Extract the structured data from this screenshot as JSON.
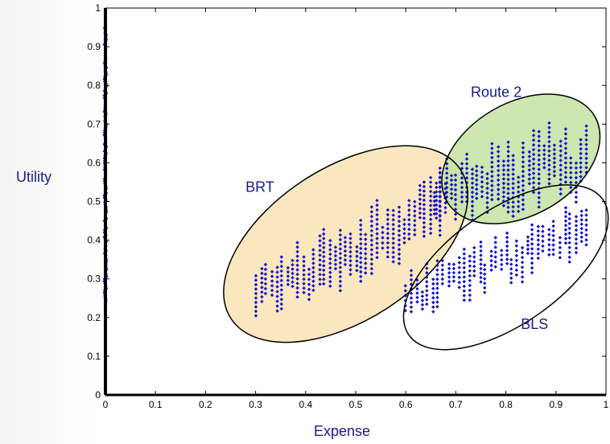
{
  "chart_data": {
    "type": "scatter",
    "xlabel": "Expense",
    "ylabel": "Utility",
    "xlim": [
      0,
      1
    ],
    "ylim": [
      0,
      1
    ],
    "xticks": [
      "0",
      "0.1",
      "0.2",
      "0.3",
      "0.4",
      "0.5",
      "0.6",
      "0.7",
      "0.8",
      "0.9",
      "1"
    ],
    "yticks": [
      "0",
      "0.1",
      "0.2",
      "0.3",
      "0.4",
      "0.5",
      "0.6",
      "0.7",
      "0.8",
      "0.9",
      "1"
    ],
    "grid": false,
    "marker_color": "#1010c8",
    "regions": [
      {
        "label": "BRT",
        "fill": "#fae3b4",
        "center": [
          0.48,
          0.39
        ],
        "label_at": [
          0.28,
          0.525
        ]
      },
      {
        "label": "Route 2",
        "fill": "#c5e2a2",
        "center": [
          0.83,
          0.61
        ],
        "label_at": [
          0.73,
          0.77
        ]
      },
      {
        "label": "BLS",
        "fill": "none",
        "center": [
          0.8,
          0.33
        ],
        "label_at": [
          0.83,
          0.17
        ]
      }
    ],
    "clusters": [
      {
        "region": "BRT",
        "x_range": [
          0.3,
          0.68
        ],
        "y_low_at_start": 0.18,
        "y_high_at_start": 0.34,
        "y_low_at_end": 0.36,
        "y_high_at_end": 0.62
      },
      {
        "region": "Route 2",
        "x_range": [
          0.66,
          0.96
        ],
        "y_low_at_start": 0.42,
        "y_high_at_start": 0.6,
        "y_low_at_end": 0.5,
        "y_high_at_end": 0.74
      },
      {
        "region": "BLS",
        "x_range": [
          0.6,
          0.96
        ],
        "y_low_at_start": 0.19,
        "y_high_at_start": 0.32,
        "y_low_at_end": 0.34,
        "y_high_at_end": 0.52
      }
    ],
    "edge_column": {
      "x": 0.0,
      "y_range": [
        0.24,
        0.96
      ]
    }
  }
}
